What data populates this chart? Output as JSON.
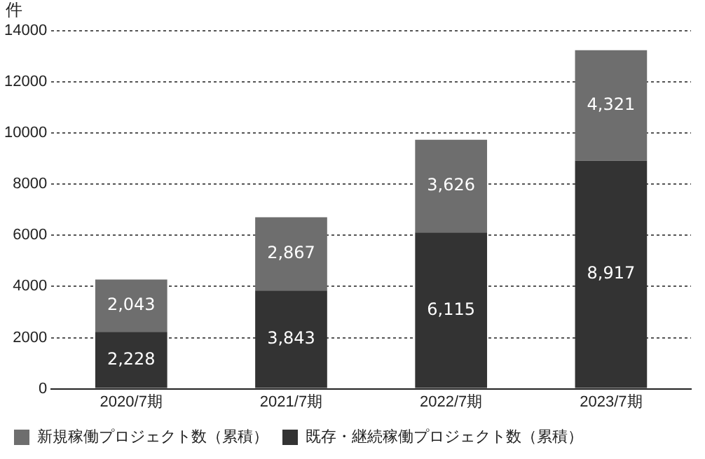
{
  "chart_data": {
    "type": "bar",
    "stacked": true,
    "ylabel": "件",
    "categories": [
      "2020/7期",
      "2021/7期",
      "2022/7期",
      "2023/7期"
    ],
    "series": [
      {
        "name": "既存・継続稼働プロジェクト数（累積）",
        "color": "#333333",
        "values": [
          2228,
          3843,
          6115,
          8917
        ],
        "value_labels": [
          "2,228",
          "3,843",
          "6,115",
          "8,917"
        ]
      },
      {
        "name": "新規稼働プロジェクト数（累積）",
        "color": "#6e6e6e",
        "values": [
          2043,
          2867,
          3626,
          4321
        ],
        "value_labels": [
          "2,043",
          "2,867",
          "3,626",
          "4,321"
        ]
      }
    ],
    "ylim": [
      0,
      14000
    ],
    "yticks": [
      0,
      2000,
      4000,
      6000,
      8000,
      10000,
      12000,
      14000
    ],
    "grid": "y",
    "legend": "bottom"
  }
}
